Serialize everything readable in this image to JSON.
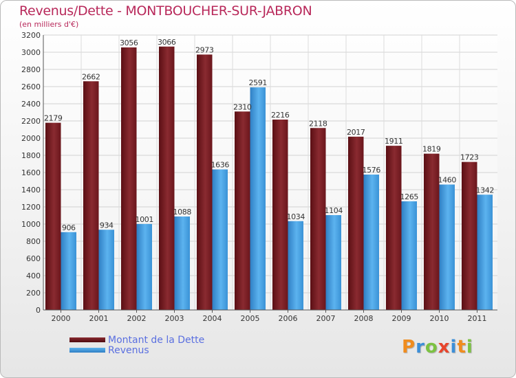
{
  "title": "Revenus/Dette - MONTBOUCHER-SUR-JABRON",
  "subtitle": "(en milliers d'€)",
  "colors": {
    "title": "#b8285a",
    "dette": "#7a1f26",
    "revenus": "#3e9de0",
    "legend_text": "#5a6fe0"
  },
  "logo": {
    "text": "Proxiti",
    "letter_colors": [
      "#f08c1e",
      "#3c8fd8",
      "#7cc242",
      "#e8452c",
      "#3c8fd8",
      "#f08c1e",
      "#7cc242"
    ]
  },
  "chart_data": {
    "type": "bar",
    "title": "Revenus/Dette - MONTBOUCHER-SUR-JABRON",
    "ylabel": "(en milliers d'€)",
    "categories": [
      "2000",
      "2001",
      "2002",
      "2003",
      "2004",
      "2005",
      "2006",
      "2007",
      "2008",
      "2009",
      "2010",
      "2011"
    ],
    "ylim": [
      0,
      3200
    ],
    "yticks": [
      0,
      200,
      400,
      600,
      800,
      1000,
      1200,
      1400,
      1600,
      1800,
      2000,
      2200,
      2400,
      2600,
      2800,
      3000,
      3200
    ],
    "grid": true,
    "legend_position": "bottom-left",
    "series": [
      {
        "name": "Montant de la Dette",
        "values": [
          2179,
          2662,
          3056,
          3066,
          2973,
          2310,
          2216,
          2118,
          2017,
          1911,
          1819,
          1723
        ]
      },
      {
        "name": "Revenus",
        "values": [
          906,
          934,
          1001,
          1088,
          1636,
          2591,
          1034,
          1104,
          1576,
          1265,
          1460,
          1342
        ]
      }
    ]
  }
}
